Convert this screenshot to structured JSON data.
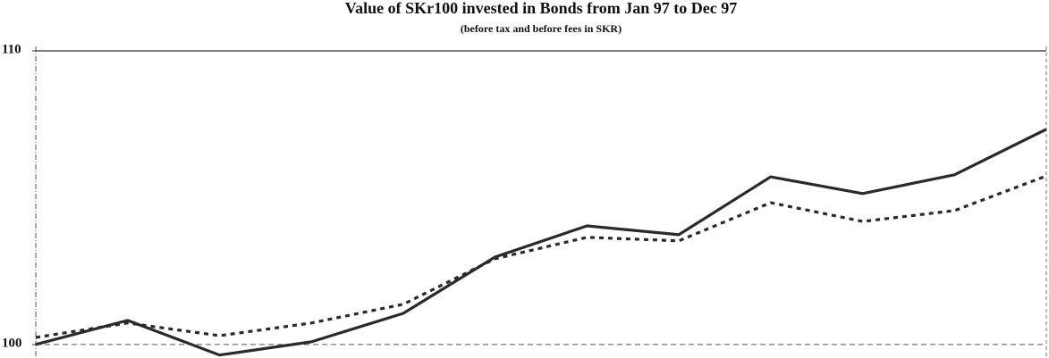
{
  "chart_data": {
    "type": "line",
    "title": "Value of SKr100 invested in Bonds from Jan 97 to Dec 97",
    "subtitle": "(before tax and before fees in SKR)",
    "categories": [
      null,
      null,
      null,
      null,
      null,
      null,
      null,
      null,
      null,
      null,
      null,
      null
    ],
    "series": [
      {
        "color": "#2a2a2a",
        "style": "solid",
        "values": [
          100.0,
          100.82,
          99.64,
          100.09,
          101.06,
          102.98,
          104.04,
          103.74,
          105.71,
          105.14,
          105.78,
          107.33
        ]
      },
      {
        "color": "#2a2a2a",
        "style": "dotted",
        "values": [
          100.24,
          100.73,
          100.3,
          100.73,
          101.37,
          102.92,
          103.65,
          103.53,
          104.83,
          104.19,
          104.56,
          105.74
        ]
      }
    ],
    "ylim": [
      99.6,
      110
    ],
    "yticks": [
      100,
      110
    ],
    "grid": true
  }
}
